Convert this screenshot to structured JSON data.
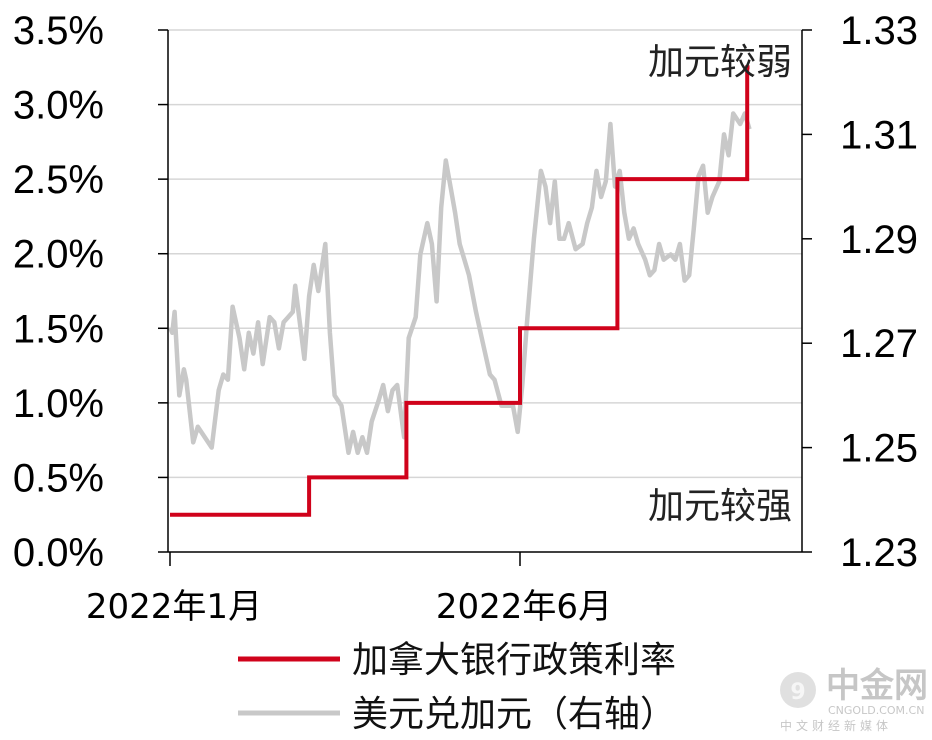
{
  "chart_data": {
    "type": "line",
    "y_left": {
      "ticks": [
        "3.5%",
        "3.0%",
        "2.5%",
        "2.0%",
        "1.5%",
        "1.0%",
        "0.5%",
        "0.0%"
      ],
      "range": [
        0,
        3.5
      ]
    },
    "y_right": {
      "ticks": [
        "1.33",
        "1.31",
        "1.29",
        "1.27",
        "1.25",
        "1.23"
      ],
      "range": [
        1.23,
        1.33
      ]
    },
    "x_ticks": [
      {
        "label": "2022年1月",
        "date": "2022-01"
      },
      {
        "label": "2022年6月",
        "date": "2022-06"
      }
    ],
    "grid": true,
    "annotations": [
      {
        "text": "加元较弱",
        "position": "top-right"
      },
      {
        "text": "加元较强",
        "position": "bottom-right"
      }
    ],
    "series": [
      {
        "name": "加拿大银行政策利率",
        "axis": "left",
        "color": "#d0021b",
        "step": true,
        "points": [
          [
            "2022-01-01",
            0.25
          ],
          [
            "2022-03-02",
            0.25
          ],
          [
            "2022-03-02",
            0.5
          ],
          [
            "2022-04-13",
            0.5
          ],
          [
            "2022-04-13",
            1.0
          ],
          [
            "2022-06-01",
            1.0
          ],
          [
            "2022-06-01",
            1.5
          ],
          [
            "2022-07-13",
            1.5
          ],
          [
            "2022-07-13",
            2.5
          ],
          [
            "2022-09-07",
            2.5
          ],
          [
            "2022-09-07",
            3.25
          ],
          [
            "2022-09-08",
            3.25
          ]
        ]
      },
      {
        "name": "美元兑加元（右轴）",
        "axis": "right",
        "color": "#c8c8c8",
        "points": [
          [
            "2022-01-01",
            1.273
          ],
          [
            "2022-01-02",
            1.272
          ],
          [
            "2022-01-03",
            1.276
          ],
          [
            "2022-01-05",
            1.26
          ],
          [
            "2022-01-07",
            1.265
          ],
          [
            "2022-01-08",
            1.263
          ],
          [
            "2022-01-11",
            1.251
          ],
          [
            "2022-01-13",
            1.254
          ],
          [
            "2022-01-16",
            1.252
          ],
          [
            "2022-01-19",
            1.25
          ],
          [
            "2022-01-22",
            1.261
          ],
          [
            "2022-01-24",
            1.264
          ],
          [
            "2022-01-26",
            1.263
          ],
          [
            "2022-01-28",
            1.277
          ],
          [
            "2022-01-31",
            1.271
          ],
          [
            "2022-02-02",
            1.265
          ],
          [
            "2022-02-04",
            1.272
          ],
          [
            "2022-02-06",
            1.268
          ],
          [
            "2022-02-08",
            1.274
          ],
          [
            "2022-02-10",
            1.266
          ],
          [
            "2022-02-13",
            1.275
          ],
          [
            "2022-02-15",
            1.274
          ],
          [
            "2022-02-17",
            1.269
          ],
          [
            "2022-02-19",
            1.274
          ],
          [
            "2022-02-21",
            1.275
          ],
          [
            "2022-02-23",
            1.276
          ],
          [
            "2022-02-24",
            1.281
          ],
          [
            "2022-02-26",
            1.274
          ],
          [
            "2022-02-28",
            1.267
          ],
          [
            "2022-03-02",
            1.279
          ],
          [
            "2022-03-04",
            1.285
          ],
          [
            "2022-03-06",
            1.28
          ],
          [
            "2022-03-09",
            1.289
          ],
          [
            "2022-03-11",
            1.272
          ],
          [
            "2022-03-13",
            1.26
          ],
          [
            "2022-03-16",
            1.258
          ],
          [
            "2022-03-19",
            1.249
          ],
          [
            "2022-03-21",
            1.253
          ],
          [
            "2022-03-23",
            1.249
          ],
          [
            "2022-03-25",
            1.252
          ],
          [
            "2022-03-27",
            1.249
          ],
          [
            "2022-03-29",
            1.255
          ],
          [
            "2022-04-01",
            1.259
          ],
          [
            "2022-04-03",
            1.262
          ],
          [
            "2022-04-05",
            1.257
          ],
          [
            "2022-04-07",
            1.261
          ],
          [
            "2022-04-09",
            1.262
          ],
          [
            "2022-04-12",
            1.252
          ],
          [
            "2022-04-14",
            1.271
          ],
          [
            "2022-04-17",
            1.275
          ],
          [
            "2022-04-19",
            1.287
          ],
          [
            "2022-04-22",
            1.293
          ],
          [
            "2022-04-24",
            1.289
          ],
          [
            "2022-04-26",
            1.278
          ],
          [
            "2022-04-28",
            1.296
          ],
          [
            "2022-04-30",
            1.305
          ],
          [
            "2022-05-02",
            1.3
          ],
          [
            "2022-05-04",
            1.295
          ],
          [
            "2022-05-06",
            1.289
          ],
          [
            "2022-05-08",
            1.286
          ],
          [
            "2022-05-10",
            1.283
          ],
          [
            "2022-05-13",
            1.276
          ],
          [
            "2022-05-16",
            1.27
          ],
          [
            "2022-05-19",
            1.264
          ],
          [
            "2022-05-21",
            1.263
          ],
          [
            "2022-05-24",
            1.258
          ],
          [
            "2022-05-26",
            1.258
          ],
          [
            "2022-05-29",
            1.258
          ],
          [
            "2022-05-31",
            1.253
          ],
          [
            "2022-06-02",
            1.262
          ],
          [
            "2022-06-04",
            1.274
          ],
          [
            "2022-06-07",
            1.29
          ],
          [
            "2022-06-10",
            1.303
          ],
          [
            "2022-06-12",
            1.3
          ],
          [
            "2022-06-14",
            1.293
          ],
          [
            "2022-06-16",
            1.301
          ],
          [
            "2022-06-18",
            1.29
          ],
          [
            "2022-06-20",
            1.29
          ],
          [
            "2022-06-22",
            1.293
          ],
          [
            "2022-06-25",
            1.288
          ],
          [
            "2022-06-28",
            1.289
          ],
          [
            "2022-06-30",
            1.293
          ],
          [
            "2022-07-02",
            1.296
          ],
          [
            "2022-07-04",
            1.303
          ],
          [
            "2022-07-06",
            1.298
          ],
          [
            "2022-07-08",
            1.301
          ],
          [
            "2022-07-10",
            1.312
          ],
          [
            "2022-07-12",
            1.3
          ],
          [
            "2022-07-14",
            1.303
          ],
          [
            "2022-07-16",
            1.295
          ],
          [
            "2022-07-18",
            1.29
          ],
          [
            "2022-07-20",
            1.292
          ],
          [
            "2022-07-22",
            1.289
          ],
          [
            "2022-07-25",
            1.286
          ],
          [
            "2022-07-27",
            1.283
          ],
          [
            "2022-07-29",
            1.284
          ],
          [
            "2022-07-31",
            1.289
          ],
          [
            "2022-08-02",
            1.286
          ],
          [
            "2022-08-05",
            1.287
          ],
          [
            "2022-08-07",
            1.286
          ],
          [
            "2022-08-09",
            1.289
          ],
          [
            "2022-08-11",
            1.282
          ],
          [
            "2022-08-13",
            1.283
          ],
          [
            "2022-08-15",
            1.292
          ],
          [
            "2022-08-17",
            1.302
          ],
          [
            "2022-08-19",
            1.304
          ],
          [
            "2022-08-21",
            1.295
          ],
          [
            "2022-08-23",
            1.298
          ],
          [
            "2022-08-26",
            1.301
          ],
          [
            "2022-08-28",
            1.31
          ],
          [
            "2022-08-30",
            1.306
          ],
          [
            "2022-09-01",
            1.314
          ],
          [
            "2022-09-04",
            1.312
          ],
          [
            "2022-09-06",
            1.314
          ],
          [
            "2022-09-08",
            1.311
          ]
        ]
      }
    ]
  },
  "legend": {
    "items": [
      {
        "label": "加拿大银行政策利率",
        "color": "#d0021b"
      },
      {
        "label": "美元兑加元（右轴）",
        "color": "#c8c8c8"
      }
    ]
  },
  "watermark": {
    "name": "中金网",
    "domain": "CNGOLD.COM.CN",
    "tagline": "中文财经新媒体"
  }
}
